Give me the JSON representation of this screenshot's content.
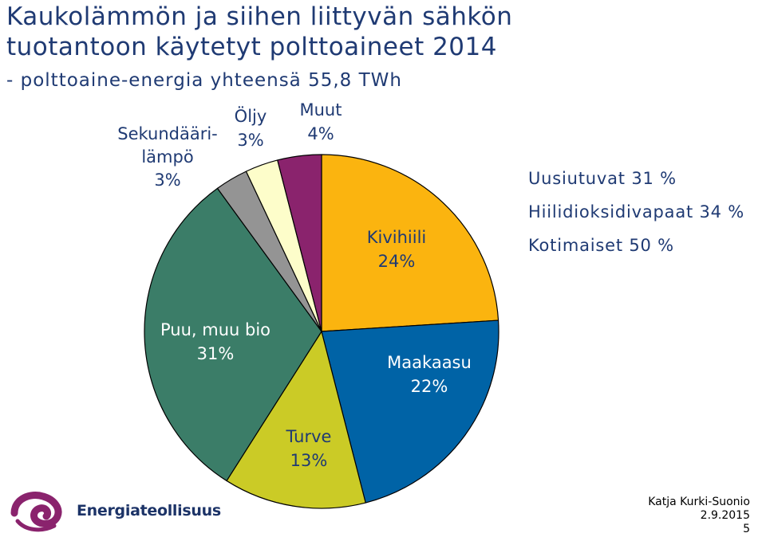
{
  "header": {
    "title_line1": "Kaukolämmön ja siihen liittyvän sähkön",
    "title_line2": "tuotantoon käytetyt polttoaineet 2014",
    "subtitle": "- polttoaine-energia yhteensä 55,8 TWh"
  },
  "chart_data": {
    "type": "pie",
    "slices": [
      {
        "name": "Kivihiili",
        "value": 24,
        "label_lines": [
          "Kivihiili",
          "24%"
        ],
        "color": "#fbb40f"
      },
      {
        "name": "Maakaasu",
        "value": 22,
        "label_lines": [
          "Maakaasu",
          "22%"
        ],
        "color": "#0063a6"
      },
      {
        "name": "Turve",
        "value": 13,
        "label_lines": [
          "Turve",
          "13%"
        ],
        "color": "#cbcb26"
      },
      {
        "name": "Puu, muu bio",
        "value": 31,
        "label_lines": [
          "Puu, muu bio",
          "31%"
        ],
        "color": "#3b7d68"
      },
      {
        "name": "Sekundäärilämpö",
        "value": 3,
        "label_lines": [
          "Sekundääri-",
          "lämpö",
          "3%"
        ],
        "color": "#949494"
      },
      {
        "name": "Öljy",
        "value": 3,
        "label_lines": [
          "Öljy",
          "3%"
        ],
        "color": "#fdfdca"
      },
      {
        "name": "Muut",
        "value": 4,
        "label_lines": [
          "Muut",
          "4%"
        ],
        "color": "#8a236d"
      }
    ]
  },
  "stats": [
    {
      "text": "Uusiutuvat 31 %"
    },
    {
      "text": "Hiilidioksidivapaat 34 %"
    },
    {
      "text": "Kotimaiset 50 %"
    }
  ],
  "logo": {
    "text": "Energiateollisuus",
    "icon": "energiateollisuus-logo-icon",
    "color": "#8a236d"
  },
  "footer": {
    "author": "Katja Kurki-Suonio",
    "date": "2.9.2015",
    "page": "5"
  }
}
